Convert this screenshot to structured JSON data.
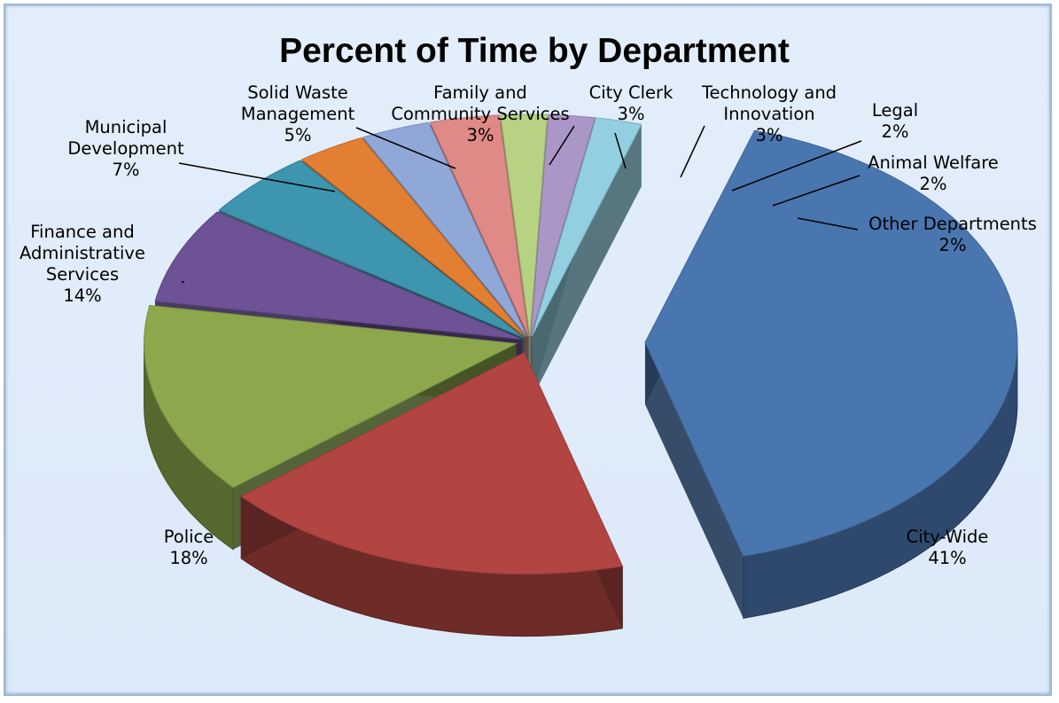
{
  "chart_data": {
    "type": "pie",
    "title": "Percent of Time by Department",
    "three_d": true,
    "slices": [
      {
        "name": "City-Wide",
        "value": 41,
        "label": "41%",
        "color": "#4a76b0",
        "label_lines": [
          "City-Wide",
          "41%"
        ]
      },
      {
        "name": "Police",
        "value": 18,
        "label": "18%",
        "color": "#b24541",
        "label_lines": [
          "Police",
          "18%"
        ]
      },
      {
        "name": "Finance and Administrative Services",
        "value": 14,
        "label": "14%",
        "color": "#8ca74c",
        "label_lines": [
          "Finance and",
          "Administrative",
          "Services",
          "14%"
        ]
      },
      {
        "name": "Municipal Development",
        "value": 7,
        "label": "7%",
        "color": "#6d5296",
        "label_lines": [
          "Municipal",
          "Development",
          "7%"
        ]
      },
      {
        "name": "Solid Waste Management",
        "value": 5,
        "label": "5%",
        "color": "#3d95b0",
        "label_lines": [
          "Solid Waste",
          "Management",
          "5%"
        ]
      },
      {
        "name": "Family and Community Services",
        "value": 3,
        "label": "3%",
        "color": "#e27f33",
        "label_lines": [
          "Family and",
          "Community Services",
          "3%"
        ]
      },
      {
        "name": "City Clerk",
        "value": 3,
        "label": "3%",
        "color": "#8fa8d8",
        "label_lines": [
          "City Clerk",
          "3%"
        ]
      },
      {
        "name": "Technology and Innovation",
        "value": 3,
        "label": "3%",
        "color": "#df8a86",
        "label_lines": [
          "Technology and",
          "Innovation",
          "3%"
        ]
      },
      {
        "name": "Legal",
        "value": 2,
        "label": "2%",
        "color": "#b7d283",
        "label_lines": [
          "Legal",
          "2%"
        ]
      },
      {
        "name": "Animal Welfare",
        "value": 2,
        "label": "2%",
        "color": "#ab97c7",
        "label_lines": [
          "Animal Welfare",
          "2%"
        ]
      },
      {
        "name": "Other Departments",
        "value": 2,
        "label": "2%",
        "color": "#92cfe0",
        "label_lines": [
          "Other Departments",
          "2%"
        ]
      }
    ]
  }
}
